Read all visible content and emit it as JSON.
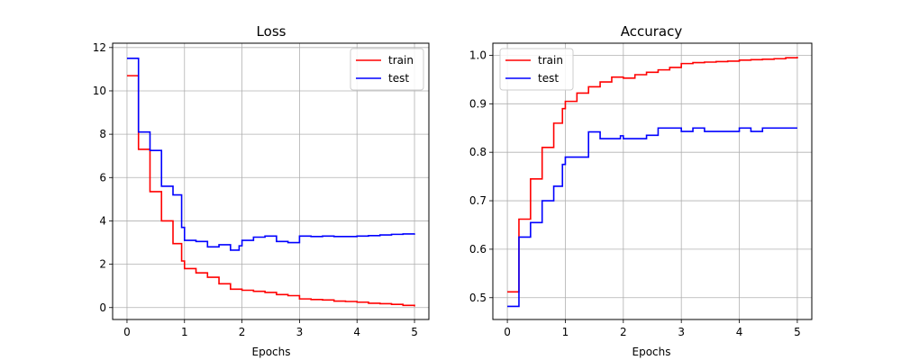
{
  "chart_data": [
    {
      "type": "line",
      "title": "Loss",
      "xlabel": "Epochs",
      "ylabel": "",
      "xlim": [
        -0.25,
        5.25
      ],
      "ylim": [
        -0.55,
        12.2
      ],
      "xticks": [
        0,
        1,
        2,
        3,
        4,
        5
      ],
      "xtick_labels": [
        "0",
        "1",
        "2",
        "3",
        "4",
        "5"
      ],
      "yticks": [
        0,
        2,
        4,
        6,
        8,
        10,
        12
      ],
      "ytick_labels": [
        "0",
        "2",
        "4",
        "6",
        "8",
        "10",
        "12"
      ],
      "grid": true,
      "legend": "top-right",
      "step": true,
      "series": [
        {
          "name": "train",
          "color": "#ff0000",
          "x": [
            0,
            0.2,
            0.4,
            0.6,
            0.8,
            0.95,
            1.0,
            1.2,
            1.4,
            1.6,
            1.8,
            2.0,
            2.2,
            2.4,
            2.6,
            2.8,
            3.0,
            3.2,
            3.4,
            3.6,
            3.8,
            4.0,
            4.2,
            4.4,
            4.6,
            4.8,
            5.0
          ],
          "y": [
            10.7,
            7.3,
            5.35,
            4.0,
            2.95,
            2.15,
            1.8,
            1.6,
            1.4,
            1.1,
            0.85,
            0.8,
            0.75,
            0.7,
            0.6,
            0.55,
            0.4,
            0.37,
            0.35,
            0.3,
            0.28,
            0.25,
            0.2,
            0.18,
            0.15,
            0.1,
            0.05
          ]
        },
        {
          "name": "test",
          "color": "#0000ff",
          "x": [
            0,
            0.2,
            0.4,
            0.6,
            0.8,
            0.95,
            1.0,
            1.2,
            1.4,
            1.6,
            1.8,
            1.95,
            2.0,
            2.2,
            2.4,
            2.6,
            2.8,
            3.0,
            3.2,
            3.4,
            3.6,
            3.8,
            4.0,
            4.2,
            4.4,
            4.6,
            4.8,
            5.0
          ],
          "y": [
            11.5,
            8.1,
            7.25,
            5.6,
            5.2,
            3.7,
            3.1,
            3.05,
            2.8,
            2.9,
            2.65,
            2.85,
            3.1,
            3.25,
            3.3,
            3.05,
            3.0,
            3.3,
            3.28,
            3.3,
            3.28,
            3.28,
            3.3,
            3.32,
            3.35,
            3.38,
            3.4,
            3.42
          ]
        }
      ]
    },
    {
      "type": "line",
      "title": "Accuracy",
      "xlabel": "Epochs",
      "ylabel": "",
      "xlim": [
        -0.25,
        5.25
      ],
      "ylim": [
        0.455,
        1.025
      ],
      "xticks": [
        0,
        1,
        2,
        3,
        4,
        5
      ],
      "xtick_labels": [
        "0",
        "1",
        "2",
        "3",
        "4",
        "5"
      ],
      "yticks": [
        0.5,
        0.6,
        0.7,
        0.8,
        0.9,
        1.0
      ],
      "ytick_labels": [
        "0.5",
        "0.6",
        "0.7",
        "0.8",
        "0.9",
        "1.0"
      ],
      "grid": true,
      "legend": "top-left",
      "step": true,
      "series": [
        {
          "name": "train",
          "color": "#ff0000",
          "x": [
            0,
            0.2,
            0.4,
            0.6,
            0.8,
            0.95,
            1.0,
            1.2,
            1.4,
            1.6,
            1.8,
            2.0,
            2.2,
            2.4,
            2.6,
            2.8,
            3.0,
            3.2,
            3.4,
            3.6,
            3.8,
            4.0,
            4.2,
            4.4,
            4.6,
            4.8,
            5.0
          ],
          "y": [
            0.512,
            0.662,
            0.745,
            0.81,
            0.86,
            0.89,
            0.905,
            0.922,
            0.935,
            0.945,
            0.955,
            0.953,
            0.96,
            0.965,
            0.97,
            0.975,
            0.983,
            0.985,
            0.986,
            0.987,
            0.988,
            0.99,
            0.991,
            0.992,
            0.993,
            0.995,
            0.997
          ]
        },
        {
          "name": "test",
          "color": "#0000ff",
          "x": [
            0,
            0.2,
            0.4,
            0.6,
            0.8,
            0.95,
            1.0,
            1.2,
            1.4,
            1.6,
            1.8,
            1.95,
            2.0,
            2.2,
            2.4,
            2.6,
            2.8,
            3.0,
            3.2,
            3.4,
            3.6,
            3.8,
            4.0,
            4.2,
            4.4,
            4.6,
            4.8,
            5.0
          ],
          "y": [
            0.482,
            0.625,
            0.655,
            0.7,
            0.73,
            0.775,
            0.79,
            0.79,
            0.842,
            0.828,
            0.828,
            0.834,
            0.828,
            0.828,
            0.835,
            0.85,
            0.85,
            0.843,
            0.85,
            0.843,
            0.843,
            0.843,
            0.85,
            0.843,
            0.85,
            0.85,
            0.85,
            0.85
          ]
        }
      ]
    }
  ]
}
